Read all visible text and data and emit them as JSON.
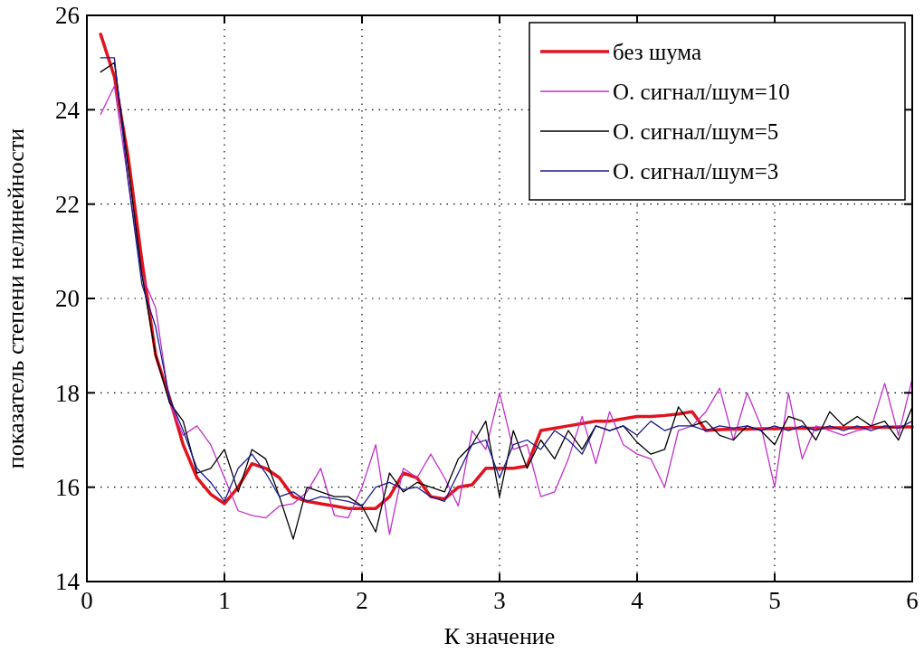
{
  "chart_data": {
    "type": "line",
    "xlabel": "К значение",
    "ylabel": "показатель степени нелинейности",
    "x": [
      0.1,
      0.2,
      0.3,
      0.4,
      0.5,
      0.6,
      0.7,
      0.8,
      0.9,
      1.0,
      1.1,
      1.2,
      1.3,
      1.4,
      1.5,
      1.6,
      1.7,
      1.8,
      1.9,
      2.0,
      2.1,
      2.2,
      2.3,
      2.4,
      2.5,
      2.6,
      2.7,
      2.8,
      2.9,
      3.0,
      3.1,
      3.2,
      3.3,
      3.4,
      3.5,
      3.6,
      3.7,
      3.8,
      3.9,
      4.0,
      4.1,
      4.2,
      4.3,
      4.4,
      4.5,
      4.6,
      4.7,
      4.8,
      4.9,
      5.0,
      5.1,
      5.2,
      5.3,
      5.4,
      5.5,
      5.6,
      5.7,
      5.8,
      5.9,
      6.0
    ],
    "series": [
      {
        "name": "без шума",
        "color": "#e0141e",
        "values": [
          25.6,
          24.7,
          23.0,
          20.8,
          18.8,
          17.9,
          16.9,
          16.2,
          15.85,
          15.65,
          16.0,
          16.5,
          16.4,
          16.2,
          15.8,
          15.7,
          15.65,
          15.6,
          15.55,
          15.55,
          15.55,
          15.8,
          16.3,
          16.2,
          15.8,
          15.75,
          16.0,
          16.05,
          16.4,
          16.4,
          16.4,
          16.45,
          17.2,
          17.25,
          17.3,
          17.35,
          17.4,
          17.4,
          17.45,
          17.5,
          17.5,
          17.52,
          17.55,
          17.6,
          17.2,
          17.22,
          17.23,
          17.23,
          17.24,
          17.24,
          17.25,
          17.25,
          17.25,
          17.26,
          17.26,
          17.26,
          17.27,
          17.27,
          17.28,
          17.28
        ]
      },
      {
        "name": "О. сигнал/шум=10",
        "color": "#c030c8",
        "values": [
          23.9,
          24.5,
          22.5,
          20.5,
          19.8,
          17.8,
          17.1,
          17.3,
          16.9,
          16.2,
          15.5,
          15.4,
          15.35,
          15.6,
          15.65,
          15.9,
          16.4,
          15.4,
          15.35,
          16.0,
          16.9,
          15.0,
          16.4,
          16.2,
          16.7,
          16.2,
          15.6,
          17.2,
          16.8,
          18.0,
          16.8,
          16.9,
          15.8,
          15.9,
          16.6,
          17.5,
          16.5,
          17.6,
          16.9,
          16.7,
          16.6,
          16.0,
          17.2,
          17.3,
          17.6,
          18.1,
          17.0,
          18.0,
          17.3,
          16.0,
          18.0,
          16.6,
          17.3,
          17.2,
          17.1,
          17.2,
          17.25,
          18.2,
          17.1,
          18.3
        ]
      },
      {
        "name": "О. сигнал/шум=5",
        "color": "#000000",
        "values": [
          24.8,
          25.0,
          22.8,
          20.5,
          18.8,
          17.8,
          17.4,
          16.3,
          16.4,
          16.8,
          15.9,
          16.8,
          16.6,
          15.8,
          14.9,
          16.0,
          15.9,
          15.8,
          15.8,
          15.6,
          15.05,
          16.3,
          15.9,
          16.1,
          16.0,
          15.9,
          16.6,
          16.9,
          17.4,
          15.8,
          17.2,
          16.4,
          17.0,
          16.6,
          17.2,
          16.8,
          17.3,
          17.2,
          17.3,
          16.95,
          16.7,
          16.8,
          17.7,
          17.3,
          17.4,
          17.1,
          17.0,
          17.3,
          17.2,
          16.9,
          17.5,
          17.4,
          17.0,
          17.6,
          17.3,
          17.5,
          17.3,
          17.4,
          17.0,
          17.7
        ]
      },
      {
        "name": "О. сигнал/шум=3",
        "color": "#1a1a8c",
        "values": [
          25.1,
          25.1,
          22.5,
          20.3,
          19.4,
          17.9,
          17.2,
          16.4,
          16.1,
          15.7,
          16.4,
          16.7,
          16.3,
          15.8,
          15.9,
          15.7,
          15.8,
          15.75,
          15.7,
          15.6,
          16.0,
          16.1,
          15.95,
          16.0,
          15.8,
          15.7,
          16.3,
          16.9,
          17.0,
          16.2,
          16.9,
          17.0,
          16.8,
          17.2,
          17.0,
          16.7,
          17.3,
          17.2,
          17.3,
          17.1,
          17.4,
          17.2,
          17.3,
          17.3,
          17.2,
          17.3,
          17.25,
          17.3,
          17.2,
          17.3,
          17.2,
          17.3,
          17.2,
          17.3,
          17.2,
          17.3,
          17.2,
          17.3,
          17.25,
          17.4
        ]
      }
    ],
    "xlim": [
      0,
      6
    ],
    "xticks": [
      0,
      1,
      2,
      3,
      4,
      5,
      6
    ],
    "ylim": [
      14,
      26
    ],
    "yticks": [
      14,
      16,
      18,
      20,
      22,
      24,
      26
    ],
    "grid": true,
    "legend": "top right",
    "line_style": "solid"
  }
}
